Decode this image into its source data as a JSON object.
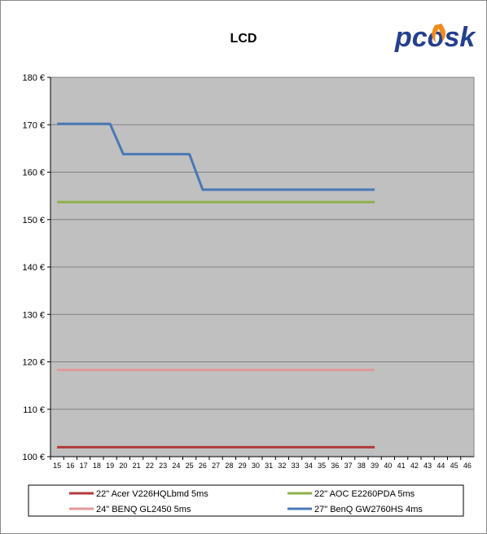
{
  "chart_data": {
    "type": "line",
    "title": "LCD",
    "xlabel": "",
    "ylabel": "",
    "ylim": [
      100,
      180
    ],
    "y_ticks": [
      "100 €",
      "110 €",
      "120 €",
      "130 €",
      "140 €",
      "150 €",
      "160 €",
      "170 €",
      "180 €"
    ],
    "x_categories": [
      "15",
      "16",
      "17",
      "18",
      "19",
      "20",
      "21",
      "22",
      "23",
      "24",
      "25",
      "26",
      "27",
      "28",
      "29",
      "30",
      "31",
      "32",
      "33",
      "34",
      "35",
      "36",
      "37",
      "38",
      "39",
      "40",
      "41",
      "42",
      "43",
      "44",
      "45",
      "46"
    ],
    "grid": true,
    "legend_position": "bottom",
    "series": [
      {
        "name": "22\" Acer V226HQLbmd 5ms",
        "color": "#b23a3a",
        "x": [
          "15",
          "39"
        ],
        "values": [
          102,
          102
        ]
      },
      {
        "name": "22\" AOC E2260PDA 5ms",
        "color": "#8fb04a",
        "x": [
          "15",
          "39"
        ],
        "values": [
          153.7,
          153.7
        ]
      },
      {
        "name": "24\" BENQ GL2450 5ms",
        "color": "#e09a9a",
        "x": [
          "15",
          "39"
        ],
        "values": [
          118.3,
          118.3
        ]
      },
      {
        "name": "27\" BenQ GW2760HS 4ms",
        "color": "#4a78b5",
        "x": [
          "15",
          "19",
          "20",
          "25",
          "26",
          "39"
        ],
        "values": [
          170.2,
          170.2,
          163.8,
          163.8,
          156.3,
          156.3
        ]
      }
    ]
  },
  "logo": {
    "text": "pcosk"
  },
  "colors": {
    "plot_bg": "#c0c0c0",
    "grid": "#808080"
  }
}
